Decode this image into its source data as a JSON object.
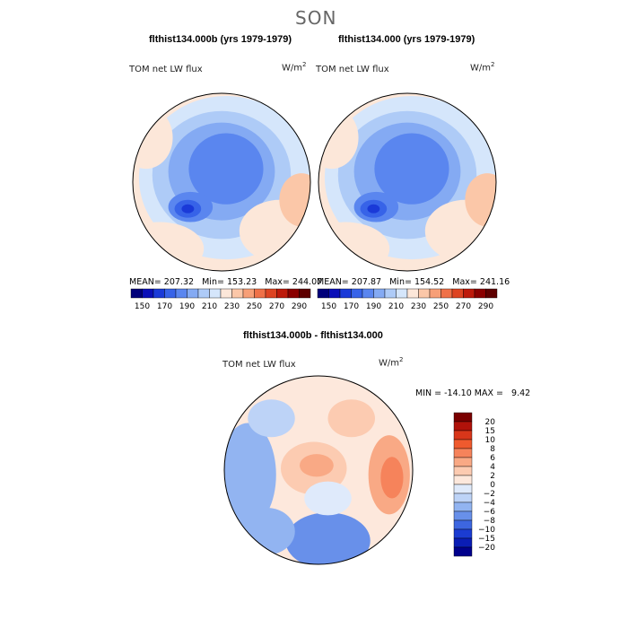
{
  "figure": {
    "season": "SON",
    "diff_title": "flthist134.000b - flthist134.000"
  },
  "panels": [
    {
      "title": "flthist134.000b (yrs 1979-1979)",
      "variable": "TOM net LW flux",
      "units": "W/m",
      "units_exp": "2",
      "mean_label": "MEAN=",
      "mean": "207.32",
      "min_label": "Min=",
      "min": "153.23",
      "max_label": "Max=",
      "max": "244.07"
    },
    {
      "title": "flthist134.000 (yrs 1979-1979)",
      "variable": "TOM net LW flux",
      "units": "W/m",
      "units_exp": "2",
      "mean_label": "MEAN=",
      "mean": "207.87",
      "min_label": "Min=",
      "min": "154.52",
      "max_label": "Max=",
      "max": "241.16"
    }
  ],
  "diff_panel": {
    "variable": "TOM net LW flux",
    "units": "W/m",
    "units_exp": "2",
    "min_label": "MIN =",
    "min": "-14.10",
    "max_label": "MAX =",
    "max": "9.42"
  },
  "chart_data": [
    {
      "type": "heatmap",
      "projection": "north-polar-stereographic",
      "title": "flthist134.000b (yrs 1979-1979)",
      "variable": "TOM net LW flux",
      "units": "W/m^2",
      "mean": 207.32,
      "min": 153.23,
      "max": 244.07,
      "colorbar": {
        "orientation": "horizontal",
        "levels": [
          150,
          160,
          170,
          180,
          190,
          200,
          210,
          220,
          230,
          240,
          250,
          260,
          270,
          280,
          290
        ],
        "tick_labels": [
          "150",
          "170",
          "190",
          "210",
          "230",
          "250",
          "270",
          "290"
        ],
        "colors": [
          "#00007a",
          "#0a0fb8",
          "#1a3ad8",
          "#3763e8",
          "#5a86ef",
          "#84aaf3",
          "#aecbf7",
          "#d5e6fb",
          "#fce7d9",
          "#fbc7a8",
          "#f79f77",
          "#ef7148",
          "#dd4422",
          "#bd1a0b",
          "#8a0000",
          "#5e0000"
        ]
      }
    },
    {
      "type": "heatmap",
      "projection": "north-polar-stereographic",
      "title": "flthist134.000 (yrs 1979-1979)",
      "variable": "TOM net LW flux",
      "units": "W/m^2",
      "mean": 207.87,
      "min": 154.52,
      "max": 241.16,
      "colorbar": {
        "orientation": "horizontal",
        "levels": [
          150,
          160,
          170,
          180,
          190,
          200,
          210,
          220,
          230,
          240,
          250,
          260,
          270,
          280,
          290
        ],
        "tick_labels": [
          "150",
          "170",
          "190",
          "210",
          "230",
          "250",
          "270",
          "290"
        ],
        "colors": [
          "#00007a",
          "#0a0fb8",
          "#1a3ad8",
          "#3763e8",
          "#5a86ef",
          "#84aaf3",
          "#aecbf7",
          "#d5e6fb",
          "#fce7d9",
          "#fbc7a8",
          "#f79f77",
          "#ef7148",
          "#dd4422",
          "#bd1a0b",
          "#8a0000",
          "#5e0000"
        ]
      }
    },
    {
      "type": "heatmap",
      "projection": "north-polar-stereographic",
      "title": "flthist134.000b - flthist134.000",
      "variable": "TOM net LW flux",
      "units": "W/m^2",
      "min": -14.1,
      "max": 9.42,
      "colorbar": {
        "orientation": "vertical",
        "tick_labels": [
          "20",
          "15",
          "10",
          "8",
          "6",
          "4",
          "2",
          "0",
          "-2",
          "-4",
          "-6",
          "-8",
          "-10",
          "-15",
          "-20"
        ],
        "colors": [
          "#7a0000",
          "#b0120a",
          "#d8361a",
          "#ef5a2e",
          "#f6835b",
          "#f9a985",
          "#fccbb1",
          "#fde8dc",
          "#dfeafb",
          "#bdd3f7",
          "#92b4f1",
          "#6890ea",
          "#3d66e0",
          "#1b3cd2",
          "#0a1db5",
          "#00008c"
        ]
      }
    }
  ]
}
